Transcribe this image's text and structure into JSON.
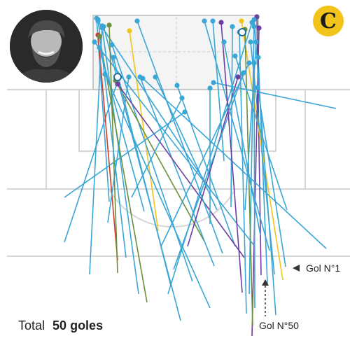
{
  "chart_data": {
    "type": "shot-map",
    "total_label": "Total",
    "total_value": "50 goles",
    "annotations": [
      {
        "id": "first",
        "label": "Gol N°1"
      },
      {
        "id": "last",
        "label": "Gol N°50"
      }
    ],
    "categories": [
      "sky-blue",
      "gold",
      "green",
      "red",
      "purple"
    ],
    "colors": {
      "sky-blue": "#3aa6d6",
      "gold": "#f2c31b",
      "green": "#6b8f3d",
      "red": "#d13b2b",
      "purple": "#6b3fa0",
      "pitch": "#d9d9d9",
      "annotation": "#333333"
    },
    "shots": [
      {
        "s": [
          408,
          381
        ],
        "e": [
          368,
          125
        ],
        "c": "sky-blue"
      },
      {
        "s": [
          373,
          393
        ],
        "e": [
          367,
          24
        ],
        "c": "purple"
      },
      {
        "s": [
          92,
          346
        ],
        "e": [
          170,
          110
        ],
        "c": "sky-blue"
      },
      {
        "s": [
          156,
          288
        ],
        "e": [
          138,
          26
        ],
        "c": "sky-blue"
      },
      {
        "s": [
          198,
          420
        ],
        "e": [
          146,
          40
        ],
        "c": "sky-blue"
      },
      {
        "s": [
          226,
          330
        ],
        "e": [
          185,
          44
        ],
        "c": "gold"
      },
      {
        "s": [
          258,
          458
        ],
        "e": [
          148,
          38
        ],
        "c": "sky-blue"
      },
      {
        "s": [
          275,
          402
        ],
        "e": [
          160,
          64
        ],
        "c": "sky-blue"
      },
      {
        "s": [
          292,
          345
        ],
        "e": [
          165,
          115
        ],
        "c": "green"
      },
      {
        "s": [
          168,
          372
        ],
        "e": [
          140,
          50
        ],
        "c": "red"
      },
      {
        "s": [
          244,
          408
        ],
        "e": [
          162,
          82
        ],
        "c": "sky-blue"
      },
      {
        "s": [
          306,
          380
        ],
        "e": [
          200,
          110
        ],
        "c": "sky-blue"
      },
      {
        "s": [
          336,
          352
        ],
        "e": [
          253,
          122
        ],
        "c": "sky-blue"
      },
      {
        "s": [
          300,
          270
        ],
        "e": [
          140,
          30
        ],
        "c": "sky-blue"
      },
      {
        "s": [
          349,
          368
        ],
        "e": [
          168,
          120
        ],
        "c": "purple"
      },
      {
        "s": [
          392,
          392
        ],
        "e": [
          358,
          60
        ],
        "c": "sky-blue"
      },
      {
        "s": [
          154,
          318
        ],
        "e": [
          184,
          110
        ],
        "c": "sky-blue"
      },
      {
        "s": [
          210,
          432
        ],
        "e": [
          142,
          52
        ],
        "c": "green"
      },
      {
        "s": [
          128,
          392
        ],
        "e": [
          146,
          37
        ],
        "c": "sky-blue"
      },
      {
        "s": [
          404,
          400
        ],
        "e": [
          345,
          30
        ],
        "c": "gold"
      },
      {
        "s": [
          356,
          420
        ],
        "e": [
          363,
          38
        ],
        "c": "sky-blue"
      },
      {
        "s": [
          382,
          405
        ],
        "e": [
          369,
          82
        ],
        "c": "sky-blue"
      },
      {
        "s": [
          360,
          480
        ],
        "e": [
          370,
          40
        ],
        "c": "purple"
      },
      {
        "s": [
          364,
          440
        ],
        "e": [
          363,
          90
        ],
        "c": "sky-blue"
      },
      {
        "s": [
          352,
          448
        ],
        "e": [
          342,
          46
        ],
        "c": "sky-blue"
      },
      {
        "s": [
          361,
          465
        ],
        "e": [
          350,
          42
        ],
        "c": "green"
      },
      {
        "s": [
          300,
          320
        ],
        "e": [
          300,
          126
        ],
        "c": "sky-blue"
      },
      {
        "s": [
          330,
          296
        ],
        "e": [
          332,
          38
        ],
        "c": "sky-blue"
      },
      {
        "s": [
          320,
          230
        ],
        "e": [
          304,
          30
        ],
        "c": "sky-blue"
      },
      {
        "s": [
          268,
          352
        ],
        "e": [
          340,
          110
        ],
        "c": "purple"
      },
      {
        "s": [
          248,
          385
        ],
        "e": [
          348,
          104
        ],
        "c": "sky-blue"
      },
      {
        "s": [
          310,
          300
        ],
        "e": [
          222,
          110
        ],
        "c": "sky-blue"
      },
      {
        "s": [
          240,
          420
        ],
        "e": [
          360,
          32
        ],
        "c": "sky-blue"
      },
      {
        "s": [
          372,
          336
        ],
        "e": [
          320,
          60
        ],
        "c": "sky-blue"
      },
      {
        "s": [
          385,
          358
        ],
        "e": [
          292,
          30
        ],
        "c": "sky-blue"
      },
      {
        "s": [
          410,
          300
        ],
        "e": [
          336,
          80
        ],
        "c": "sky-blue"
      },
      {
        "s": [
          364,
          352
        ],
        "e": [
          135,
          60
        ],
        "c": "sky-blue"
      },
      {
        "s": [
          466,
          355
        ],
        "e": [
          204,
          112
        ],
        "c": "sky-blue"
      },
      {
        "s": [
          480,
          155
        ],
        "e": [
          305,
          118
        ],
        "c": "sky-blue"
      },
      {
        "s": [
          346,
          418
        ],
        "e": [
          316,
          32
        ],
        "c": "purple"
      },
      {
        "s": [
          230,
          352
        ],
        "e": [
          356,
          90
        ],
        "c": "sky-blue"
      },
      {
        "s": [
          318,
          362
        ],
        "e": [
          196,
          30
        ],
        "c": "sky-blue"
      },
      {
        "s": [
          188,
          282
        ],
        "e": [
          260,
          140
        ],
        "c": "sky-blue"
      },
      {
        "s": [
          92,
          282
        ],
        "e": [
          264,
          160
        ],
        "c": "sky-blue"
      },
      {
        "s": [
          206,
          302
        ],
        "e": [
          142,
          68
        ],
        "c": "sky-blue"
      },
      {
        "s": [
          300,
          440
        ],
        "e": [
          150,
          106
        ],
        "c": "sky-blue"
      },
      {
        "s": [
          168,
          390
        ],
        "e": [
          156,
          36
        ],
        "c": "green"
      },
      {
        "s": [
          180,
          368
        ],
        "e": [
          140,
          28
        ],
        "c": "sky-blue"
      },
      {
        "s": [
          394,
          450
        ],
        "e": [
          363,
          28
        ],
        "c": "sky-blue"
      },
      {
        "s": [
          350,
          300
        ],
        "e": [
          366,
          60
        ],
        "c": "sky-blue"
      }
    ]
  }
}
